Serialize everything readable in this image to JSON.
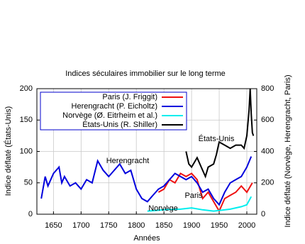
{
  "chart_data": {
    "type": "line",
    "title": "Indices séculaires immobilier sur le long terme",
    "xlabel": "Années",
    "ylabel": "Indice déflaté (États-Unis)",
    "y2label": "Indice déflaté (Norvège, Herengracht, Paris)",
    "xlim": [
      1620,
      2018
    ],
    "xticks": [
      1650,
      1700,
      1750,
      1800,
      1850,
      1900,
      1950,
      2000
    ],
    "ylim": [
      0,
      200
    ],
    "yticks": [
      0,
      50,
      100,
      150,
      200
    ],
    "y2lim": [
      0,
      800
    ],
    "y2ticks": [
      0,
      200,
      400,
      600,
      800
    ],
    "grid": true,
    "legend": "upper left",
    "series": [
      {
        "name": "Paris (J. Friggit)",
        "color": "#ee1111",
        "axis": "y2",
        "x": [
          1840,
          1850,
          1860,
          1870,
          1880,
          1890,
          1900,
          1910,
          1920,
          1930,
          1940,
          1950,
          1960,
          1970,
          1980,
          1990,
          2000,
          2010
        ],
        "values": [
          140,
          160,
          220,
          200,
          260,
          240,
          260,
          220,
          100,
          140,
          80,
          20,
          100,
          120,
          140,
          180,
          140,
          200
        ]
      },
      {
        "name": "Herengracht (P. Eicholtz)",
        "color": "#0000dd",
        "axis": "y2",
        "x": [
          1628,
          1635,
          1640,
          1650,
          1660,
          1665,
          1670,
          1680,
          1690,
          1700,
          1710,
          1720,
          1730,
          1740,
          1750,
          1760,
          1770,
          1780,
          1790,
          1800,
          1810,
          1820,
          1830,
          1840,
          1850,
          1860,
          1870,
          1880,
          1890,
          1900,
          1910,
          1920,
          1930,
          1940,
          1950,
          1960,
          1970,
          1980,
          1990,
          2000,
          2008
        ],
        "values": [
          100,
          240,
          180,
          260,
          300,
          200,
          240,
          180,
          200,
          160,
          220,
          200,
          340,
          280,
          240,
          280,
          320,
          260,
          280,
          160,
          100,
          80,
          120,
          160,
          180,
          220,
          260,
          240,
          220,
          240,
          200,
          140,
          160,
          100,
          60,
          140,
          200,
          220,
          240,
          300,
          368
        ]
      },
      {
        "name": "Norvège (Ø. Eitrheim et al.)",
        "color": "#00eeee",
        "axis": "y2",
        "x": [
          1820,
          1850,
          1880,
          1900,
          1920,
          1940,
          1950,
          1970,
          1990,
          2000,
          2008
        ],
        "values": [
          20,
          28,
          32,
          40,
          28,
          20,
          24,
          32,
          48,
          60,
          112
        ]
      },
      {
        "name": "États-Unis (R. Shiller)",
        "color": "#000000",
        "x": [
          1890,
          1895,
          1900,
          1910,
          1920,
          1925,
          1930,
          1940,
          1945,
          1950,
          1960,
          1970,
          1980,
          1990,
          1995,
          2000,
          2004,
          2006,
          2008,
          2010,
          2012
        ],
        "values": [
          100,
          80,
          75,
          90,
          70,
          60,
          75,
          80,
          95,
          115,
          110,
          105,
          110,
          110,
          105,
          125,
          165,
          200,
          160,
          130,
          125
        ]
      }
    ],
    "annotations": [
      "Herengracht",
      "États-Unis",
      "Paris",
      "Norvège"
    ]
  }
}
